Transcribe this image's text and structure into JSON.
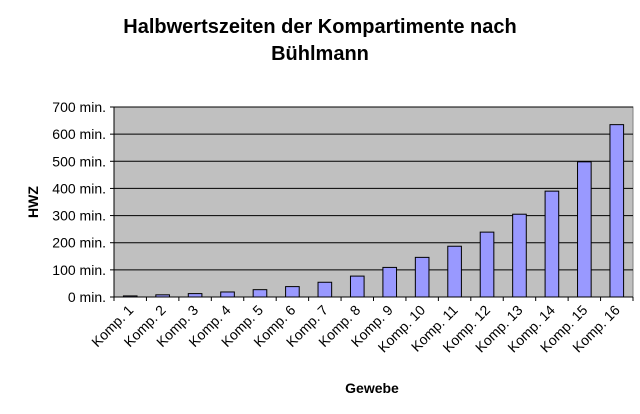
{
  "chart_data": {
    "type": "bar",
    "title_line1": "Halbwertszeiten der Kompartimente nach",
    "title_line2": "Bühlmann",
    "xlabel": "Gewebe",
    "ylabel": "HWZ",
    "ylim": [
      0,
      700
    ],
    "ytick_values": [
      0,
      100,
      200,
      300,
      400,
      500,
      600,
      700
    ],
    "ytick_labels": [
      "0 min.",
      "100 min.",
      "200 min.",
      "300 min.",
      "400 min.",
      "500 min.",
      "600 min.",
      "700 min."
    ],
    "categories": [
      "Komp. 1",
      "Komp. 2",
      "Komp. 3",
      "Komp. 4",
      "Komp. 5",
      "Komp. 6",
      "Komp. 7",
      "Komp. 8",
      "Komp. 9",
      "Komp. 10",
      "Komp. 11",
      "Komp. 12",
      "Komp. 13",
      "Komp. 14",
      "Komp. 15",
      "Komp. 16"
    ],
    "values": [
      4,
      8,
      12.5,
      18.5,
      27,
      38.3,
      54.3,
      77,
      109,
      146,
      187,
      239,
      305,
      390,
      498,
      635
    ],
    "grid": true,
    "legend": "none",
    "colors": {
      "bar_fill": "#9999ff",
      "bar_stroke": "#000000",
      "plot_background": "#c0c0c0",
      "grid": "#000000"
    }
  }
}
